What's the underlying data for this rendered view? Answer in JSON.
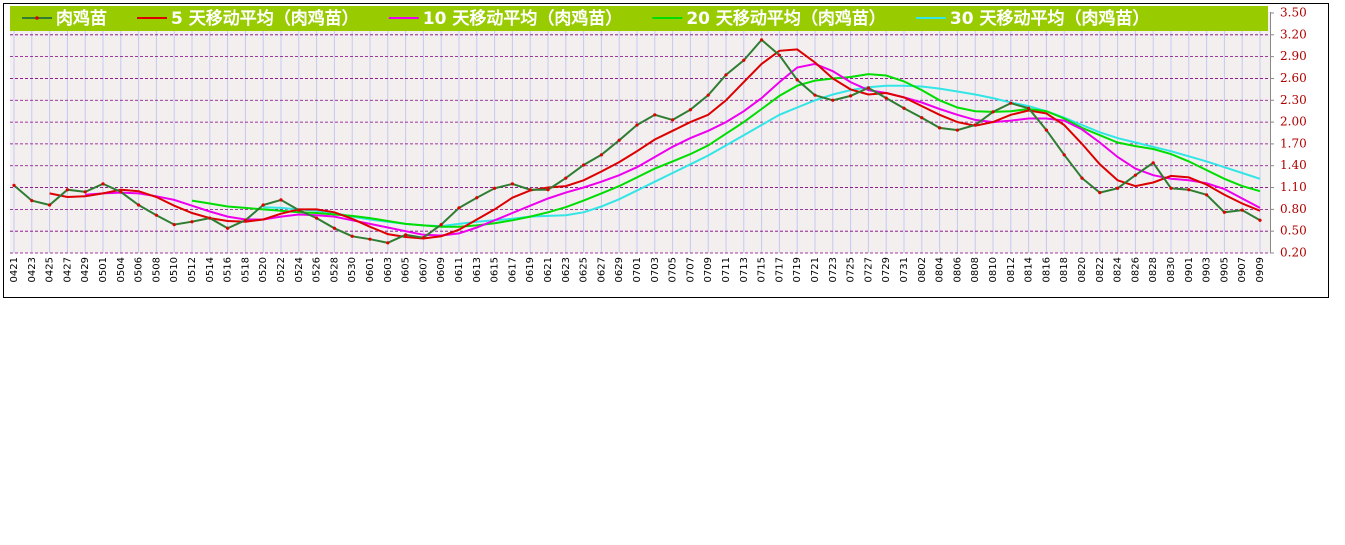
{
  "chart_data": {
    "type": "line",
    "categories": [
      "0421",
      "0423",
      "0425",
      "0427",
      "0429",
      "0501",
      "0504",
      "0506",
      "0508",
      "0510",
      "0512",
      "0514",
      "0516",
      "0518",
      "0520",
      "0522",
      "0524",
      "0526",
      "0528",
      "0530",
      "0601",
      "0603",
      "0605",
      "0607",
      "0609",
      "0611",
      "0613",
      "0615",
      "0617",
      "0619",
      "0621",
      "0623",
      "0625",
      "0627",
      "0629",
      "0701",
      "0703",
      "0705",
      "0707",
      "0709",
      "0711",
      "0713",
      "0715",
      "0717",
      "0719",
      "0721",
      "0723",
      "0725",
      "0727",
      "0729",
      "0731",
      "0802",
      "0804",
      "0806",
      "0808",
      "0810",
      "0812",
      "0814",
      "0816",
      "0818",
      "0820",
      "0822",
      "0824",
      "0826",
      "0828",
      "0830",
      "0901",
      "0903",
      "0905",
      "0907",
      "0909"
    ],
    "series": [
      {
        "name": "肉鸡苗",
        "color": "#2e7d32",
        "values": [
          1.13,
          0.92,
          0.86,
          1.07,
          1.04,
          1.15,
          1.04,
          0.86,
          0.72,
          0.59,
          0.63,
          0.68,
          0.54,
          0.65,
          0.86,
          0.93,
          0.79,
          0.68,
          0.54,
          0.43,
          0.39,
          0.34,
          0.45,
          0.41,
          0.59,
          0.82,
          0.96,
          1.09,
          1.15,
          1.07,
          1.07,
          1.23,
          1.41,
          1.55,
          1.75,
          1.96,
          2.1,
          2.03,
          2.17,
          2.37,
          2.65,
          2.85,
          3.13,
          2.92,
          2.58,
          2.37,
          2.3,
          2.36,
          2.47,
          2.33,
          2.19,
          2.06,
          1.92,
          1.89,
          1.96,
          2.14,
          2.26,
          2.19,
          1.89,
          1.55,
          1.23,
          1.03,
          1.09,
          1.27,
          1.44,
          1.09,
          1.07,
          1.0,
          0.76,
          0.79,
          0.65
        ]
      },
      {
        "name": "5 天移动平均（肉鸡苗）",
        "color": "#dd0000",
        "values": [
          null,
          null,
          1.02,
          0.97,
          0.98,
          1.02,
          1.07,
          1.05,
          0.97,
          0.85,
          0.75,
          0.68,
          0.64,
          0.63,
          0.66,
          0.74,
          0.8,
          0.8,
          0.76,
          0.67,
          0.56,
          0.46,
          0.42,
          0.4,
          0.43,
          0.52,
          0.66,
          0.8,
          0.96,
          1.06,
          1.1,
          1.12,
          1.2,
          1.32,
          1.45,
          1.6,
          1.76,
          1.88,
          2.0,
          2.1,
          2.3,
          2.55,
          2.8,
          2.98,
          3.0,
          2.82,
          2.6,
          2.45,
          2.38,
          2.4,
          2.34,
          2.22,
          2.1,
          2.0,
          1.95,
          2.0,
          2.1,
          2.16,
          2.12,
          1.96,
          1.7,
          1.42,
          1.2,
          1.12,
          1.17,
          1.26,
          1.24,
          1.14,
          1.0,
          0.88,
          0.78
        ]
      },
      {
        "name": "10 天移动平均（肉鸡苗）",
        "color": "#ee00ee",
        "values": [
          null,
          null,
          null,
          null,
          1.0,
          1.02,
          1.03,
          1.02,
          0.98,
          0.93,
          0.85,
          0.77,
          0.7,
          0.66,
          0.66,
          0.7,
          0.73,
          0.72,
          0.7,
          0.65,
          0.6,
          0.55,
          0.5,
          0.45,
          0.44,
          0.47,
          0.55,
          0.65,
          0.75,
          0.85,
          0.95,
          1.03,
          1.1,
          1.18,
          1.27,
          1.38,
          1.52,
          1.66,
          1.78,
          1.88,
          2.0,
          2.15,
          2.33,
          2.55,
          2.75,
          2.8,
          2.7,
          2.55,
          2.44,
          2.4,
          2.34,
          2.27,
          2.18,
          2.1,
          2.03,
          2.0,
          2.02,
          2.05,
          2.05,
          2.02,
          1.9,
          1.72,
          1.52,
          1.36,
          1.27,
          1.22,
          1.2,
          1.16,
          1.08,
          0.95,
          0.82
        ]
      },
      {
        "name": "20 天移动平均（肉鸡苗）",
        "color": "#00dd00",
        "values": [
          null,
          null,
          null,
          null,
          null,
          null,
          null,
          null,
          null,
          null,
          0.92,
          0.88,
          0.84,
          0.82,
          0.8,
          0.78,
          0.76,
          0.75,
          0.73,
          0.71,
          0.68,
          0.64,
          0.6,
          0.58,
          0.56,
          0.56,
          0.58,
          0.61,
          0.65,
          0.7,
          0.76,
          0.83,
          0.92,
          1.02,
          1.12,
          1.24,
          1.36,
          1.46,
          1.56,
          1.68,
          1.84,
          2.0,
          2.18,
          2.36,
          2.5,
          2.57,
          2.6,
          2.62,
          2.66,
          2.64,
          2.56,
          2.44,
          2.3,
          2.2,
          2.15,
          2.14,
          2.15,
          2.18,
          2.15,
          2.05,
          1.92,
          1.82,
          1.72,
          1.67,
          1.63,
          1.56,
          1.46,
          1.34,
          1.22,
          1.12,
          1.05
        ]
      },
      {
        "name": "30 天移动平均（肉鸡苗）",
        "color": "#33e5e5",
        "values": [
          null,
          null,
          null,
          null,
          null,
          null,
          null,
          null,
          null,
          null,
          null,
          null,
          null,
          null,
          0.83,
          0.82,
          0.8,
          0.78,
          0.75,
          0.7,
          0.66,
          0.63,
          0.6,
          0.58,
          0.57,
          0.6,
          0.63,
          0.65,
          0.67,
          0.7,
          0.71,
          0.72,
          0.76,
          0.84,
          0.94,
          1.06,
          1.18,
          1.3,
          1.42,
          1.54,
          1.68,
          1.82,
          1.96,
          2.1,
          2.2,
          2.3,
          2.38,
          2.44,
          2.48,
          2.5,
          2.5,
          2.49,
          2.46,
          2.42,
          2.38,
          2.33,
          2.27,
          2.22,
          2.15,
          2.06,
          1.96,
          1.86,
          1.78,
          1.72,
          1.66,
          1.6,
          1.53,
          1.46,
          1.38,
          1.3,
          1.22
        ]
      }
    ],
    "ylim": [
      0.2,
      3.5
    ],
    "yticks": [
      {
        "value": 0.2,
        "label": "0.20"
      },
      {
        "value": 0.5,
        "label": "0.50"
      },
      {
        "value": 0.8,
        "label": "0.80"
      },
      {
        "value": 1.1,
        "label": "1.10"
      },
      {
        "value": 1.4,
        "label": "1.40"
      },
      {
        "value": 1.7,
        "label": "1.70"
      },
      {
        "value": 2.0,
        "label": "2.00"
      },
      {
        "value": 2.3,
        "label": "2.30"
      },
      {
        "value": 2.6,
        "label": "2.60"
      },
      {
        "value": 2.9,
        "label": "2.90"
      },
      {
        "value": 3.2,
        "label": "3.20"
      },
      {
        "value": 3.5,
        "label": "3.50"
      }
    ],
    "grid": true,
    "legend": "top"
  }
}
